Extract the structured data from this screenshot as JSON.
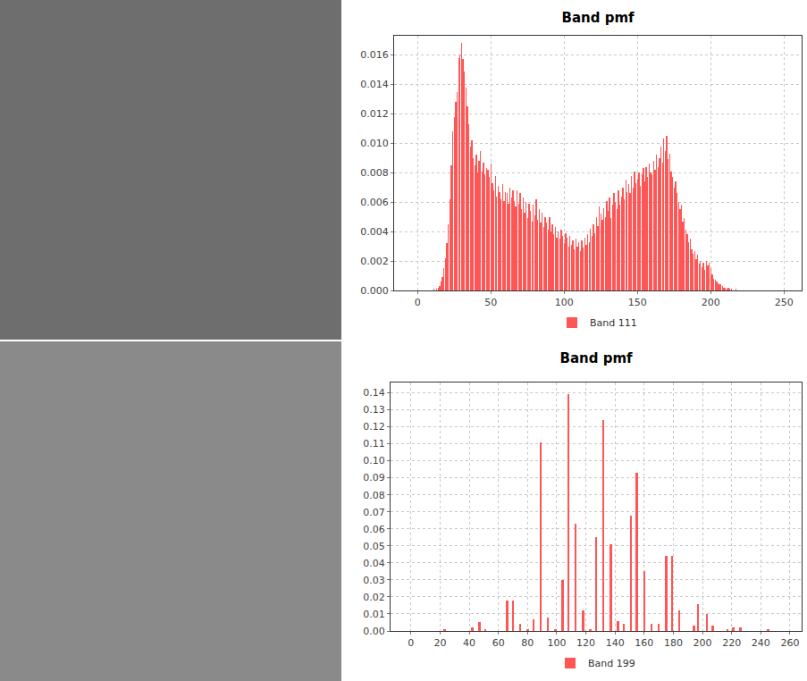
{
  "chart_data": [
    {
      "type": "bar",
      "title": "Band pmf",
      "x": [
        10,
        11,
        12,
        13,
        14,
        15,
        16,
        17,
        18,
        19,
        20,
        21,
        22,
        23,
        24,
        25,
        26,
        27,
        28,
        29,
        30,
        31,
        32,
        33,
        34,
        35,
        36,
        37,
        38,
        39,
        40,
        41,
        42,
        43,
        44,
        45,
        46,
        47,
        48,
        49,
        50,
        51,
        52,
        53,
        54,
        55,
        56,
        57,
        58,
        59,
        60,
        61,
        62,
        63,
        64,
        65,
        66,
        67,
        68,
        69,
        70,
        71,
        72,
        73,
        74,
        75,
        76,
        77,
        78,
        79,
        80,
        81,
        82,
        83,
        84,
        85,
        86,
        87,
        88,
        89,
        90,
        91,
        92,
        93,
        94,
        95,
        96,
        97,
        98,
        99,
        100,
        101,
        102,
        103,
        104,
        105,
        106,
        107,
        108,
        109,
        110,
        111,
        112,
        113,
        114,
        115,
        116,
        117,
        118,
        119,
        120,
        121,
        122,
        123,
        124,
        125,
        126,
        127,
        128,
        129,
        130,
        131,
        132,
        133,
        134,
        135,
        136,
        137,
        138,
        139,
        140,
        141,
        142,
        143,
        144,
        145,
        146,
        147,
        148,
        149,
        150,
        151,
        152,
        153,
        154,
        155,
        156,
        157,
        158,
        159,
        160,
        161,
        162,
        163,
        164,
        165,
        166,
        167,
        168,
        169,
        170,
        171,
        172,
        173,
        174,
        175,
        176,
        177,
        178,
        179,
        180,
        181,
        182,
        183,
        184,
        185,
        186,
        187,
        188,
        189,
        190,
        191,
        192,
        193,
        194,
        195,
        196,
        197,
        198,
        199,
        200,
        201,
        202,
        203,
        204,
        205,
        206,
        207,
        208,
        209,
        210,
        211,
        212,
        213,
        214,
        215,
        216,
        217,
        218,
        219
      ],
      "series": [
        {
          "name": "Band 111",
          "color": "#ff5555",
          "values": [
            0,
            0.0001,
            0,
            0.0001,
            0.0002,
            0.0003,
            0.0006,
            0.0009,
            0.0015,
            0.0022,
            0.0032,
            0.0045,
            0.0062,
            0.0085,
            0.0108,
            0.0118,
            0.0128,
            0.0135,
            0.0158,
            0.016,
            0.0168,
            0.0157,
            0.0149,
            0.0138,
            0.0125,
            0.0113,
            0.0098,
            0.0102,
            0.009,
            0.0085,
            0.0092,
            0.008,
            0.0088,
            0.0095,
            0.0081,
            0.0087,
            0.0079,
            0.0083,
            0.0082,
            0.0077,
            0.0086,
            0.0073,
            0.0068,
            0.0078,
            0.0064,
            0.0071,
            0.0067,
            0.0062,
            0.0072,
            0.0061,
            0.0067,
            0.0066,
            0.0059,
            0.007,
            0.0063,
            0.0068,
            0.0061,
            0.0057,
            0.0068,
            0.0059,
            0.0066,
            0.0055,
            0.0063,
            0.0053,
            0.006,
            0.0049,
            0.0059,
            0.0054,
            0.0047,
            0.0058,
            0.0051,
            0.0062,
            0.0048,
            0.0055,
            0.0046,
            0.0053,
            0.0043,
            0.005,
            0.0046,
            0.0041,
            0.005,
            0.004,
            0.0045,
            0.0038,
            0.0043,
            0.0036,
            0.004,
            0.0035,
            0.0041,
            0.0037,
            0.0032,
            0.0039,
            0.0036,
            0.003,
            0.0037,
            0.0031,
            0.0034,
            0.0028,
            0.0035,
            0.003,
            0.0033,
            0.0027,
            0.0034,
            0.0029,
            0.0036,
            0.0031,
            0.0038,
            0.0033,
            0.0042,
            0.0037,
            0.0045,
            0.0039,
            0.005,
            0.0044,
            0.0057,
            0.0052,
            0.0048,
            0.0056,
            0.005,
            0.0061,
            0.0054,
            0.0063,
            0.0049,
            0.0058,
            0.0066,
            0.006,
            0.0055,
            0.0068,
            0.0058,
            0.0064,
            0.007,
            0.0062,
            0.0075,
            0.0067,
            0.0072,
            0.0066,
            0.0078,
            0.007,
            0.0081,
            0.0073,
            0.0076,
            0.008,
            0.0071,
            0.0079,
            0.0083,
            0.0074,
            0.0084,
            0.0077,
            0.0086,
            0.008,
            0.0079,
            0.0088,
            0.0082,
            0.0092,
            0.0084,
            0.009,
            0.0098,
            0.0087,
            0.0103,
            0.0095,
            0.0105,
            0.0089,
            0.0093,
            0.0081,
            0.0077,
            0.007,
            0.0074,
            0.0066,
            0.006,
            0.0055,
            0.0058,
            0.0047,
            0.0049,
            0.0041,
            0.0038,
            0.0033,
            0.0035,
            0.0028,
            0.0025,
            0.0027,
            0.0021,
            0.0024,
            0.0018,
            0.002,
            0.0016,
            0.0019,
            0.0014,
            0.002,
            0.0017,
            0.0019,
            0.0015,
            0.0011,
            0.0008,
            0.0007,
            0.0006,
            0.0005,
            0.0004,
            0.0004,
            0.0003,
            0.0002,
            0.0002,
            0.0001,
            0.0002,
            0.0001,
            0.0001,
            0,
            0,
            0.0001,
            0,
            0
          ]
        }
      ],
      "xlim": [
        -16,
        262
      ],
      "xticks": [
        0,
        50,
        100,
        150,
        200,
        250
      ],
      "ylim": [
        0,
        0.0173
      ],
      "yticks": [
        {
          "value": 0,
          "label": "0.000"
        },
        {
          "value": 0.002,
          "label": "0.002"
        },
        {
          "value": 0.004,
          "label": "0.004"
        },
        {
          "value": 0.006,
          "label": "0.006"
        },
        {
          "value": 0.008,
          "label": "0.008"
        },
        {
          "value": 0.01,
          "label": "0.010"
        },
        {
          "value": 0.012,
          "label": "0.012"
        },
        {
          "value": 0.014,
          "label": "0.014"
        },
        {
          "value": 0.016,
          "label": "0.016"
        }
      ],
      "grid": true,
      "legend": "bottom"
    },
    {
      "type": "bar",
      "title": "Band pmf",
      "x": [
        23,
        42,
        47,
        51,
        66,
        70,
        75,
        80,
        84,
        89,
        94,
        99,
        104,
        108,
        113,
        118,
        123,
        127,
        132,
        137,
        142,
        146,
        151,
        155,
        160,
        165,
        170,
        175,
        179,
        184,
        194,
        197,
        203,
        207,
        217,
        221,
        226,
        245
      ],
      "series": [
        {
          "name": "Band 199",
          "color": "#ff5555",
          "values": [
            0.001,
            0.002,
            0.005,
            0.001,
            0.018,
            0.018,
            0.004,
            0.001,
            0.007,
            0.111,
            0.008,
            0.001,
            0.03,
            0.139,
            0.063,
            0.012,
            0.001,
            0.055,
            0.124,
            0.051,
            0.006,
            0.004,
            0.068,
            0.093,
            0.035,
            0.004,
            0.004,
            0.044,
            0.044,
            0.012,
            0.003,
            0.016,
            0.01,
            0.003,
            0.001,
            0.002,
            0.002,
            0.001
          ]
        }
      ],
      "xlim": [
        -14,
        268
      ],
      "xticks": [
        0,
        20,
        40,
        60,
        80,
        100,
        120,
        140,
        160,
        180,
        200,
        220,
        240,
        260
      ],
      "ylim": [
        0,
        0.146
      ],
      "yticks": [
        {
          "value": 0,
          "label": "0.00"
        },
        0.01,
        0.02,
        0.03,
        0.04,
        0.05,
        0.06,
        0.07,
        0.08,
        0.09,
        {
          "value": 0.1,
          "label": "0.10"
        },
        0.11,
        0.12,
        0.13,
        0.14
      ],
      "grid": true,
      "legend": "bottom"
    }
  ]
}
